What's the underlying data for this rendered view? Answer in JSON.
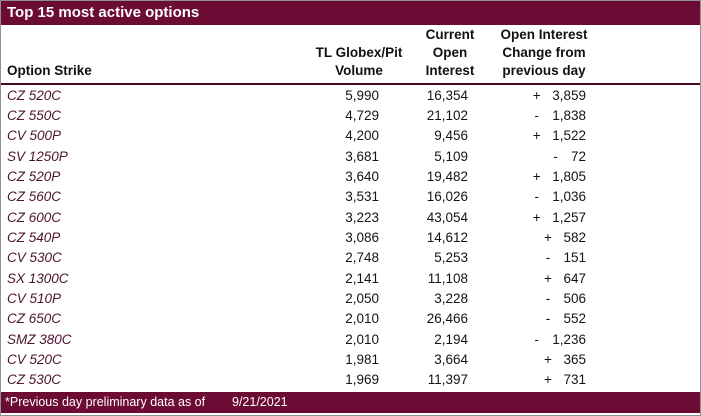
{
  "title": "Top 15 most active options",
  "columns": {
    "strike": "Option Strike",
    "volume_lines": [
      "TL Globex/Pit",
      "Volume"
    ],
    "oi_lines": [
      "Current",
      "Open",
      "Interest"
    ],
    "change_lines": [
      "Open Interest",
      "Change from",
      "previous day"
    ]
  },
  "rows": [
    {
      "strike": "CZ 520C",
      "volume": "5,990",
      "oi": "16,354",
      "sign": "+",
      "change": "3,859"
    },
    {
      "strike": "CZ 550C",
      "volume": "4,729",
      "oi": "21,102",
      "sign": "-",
      "change": "1,838"
    },
    {
      "strike": "CV 500P",
      "volume": "4,200",
      "oi": "9,456",
      "sign": "+",
      "change": "1,522"
    },
    {
      "strike": "SV 1250P",
      "volume": "3,681",
      "oi": "5,109",
      "sign": "-",
      "change": "72"
    },
    {
      "strike": "CZ 520P",
      "volume": "3,640",
      "oi": "19,482",
      "sign": "+",
      "change": "1,805"
    },
    {
      "strike": "CZ 560C",
      "volume": "3,531",
      "oi": "16,026",
      "sign": "-",
      "change": "1,036"
    },
    {
      "strike": "CZ 600C",
      "volume": "3,223",
      "oi": "43,054",
      "sign": "+",
      "change": "1,257"
    },
    {
      "strike": "CZ 540P",
      "volume": "3,086",
      "oi": "14,612",
      "sign": "+",
      "change": "582"
    },
    {
      "strike": "CV 530C",
      "volume": "2,748",
      "oi": "5,253",
      "sign": "-",
      "change": "151"
    },
    {
      "strike": "SX 1300C",
      "volume": "2,141",
      "oi": "11,108",
      "sign": "+",
      "change": "647"
    },
    {
      "strike": "CV 510P",
      "volume": "2,050",
      "oi": "3,228",
      "sign": "-",
      "change": "506"
    },
    {
      "strike": "CZ 650C",
      "volume": "2,010",
      "oi": "26,466",
      "sign": "-",
      "change": "552"
    },
    {
      "strike": "SMZ 380C",
      "volume": "2,010",
      "oi": "2,194",
      "sign": "-",
      "change": "1,236"
    },
    {
      "strike": "CV 520C",
      "volume": "1,981",
      "oi": "3,664",
      "sign": "+",
      "change": "365"
    },
    {
      "strike": "CZ 530C",
      "volume": "1,969",
      "oi": "11,397",
      "sign": "+",
      "change": "731"
    }
  ],
  "footer": {
    "note": "*Previous day preliminary data as of",
    "date": "9/21/2021"
  },
  "colors": {
    "maroon": "#6C0B33",
    "header_rule": "#470823",
    "strike_text": "#4C142E"
  }
}
